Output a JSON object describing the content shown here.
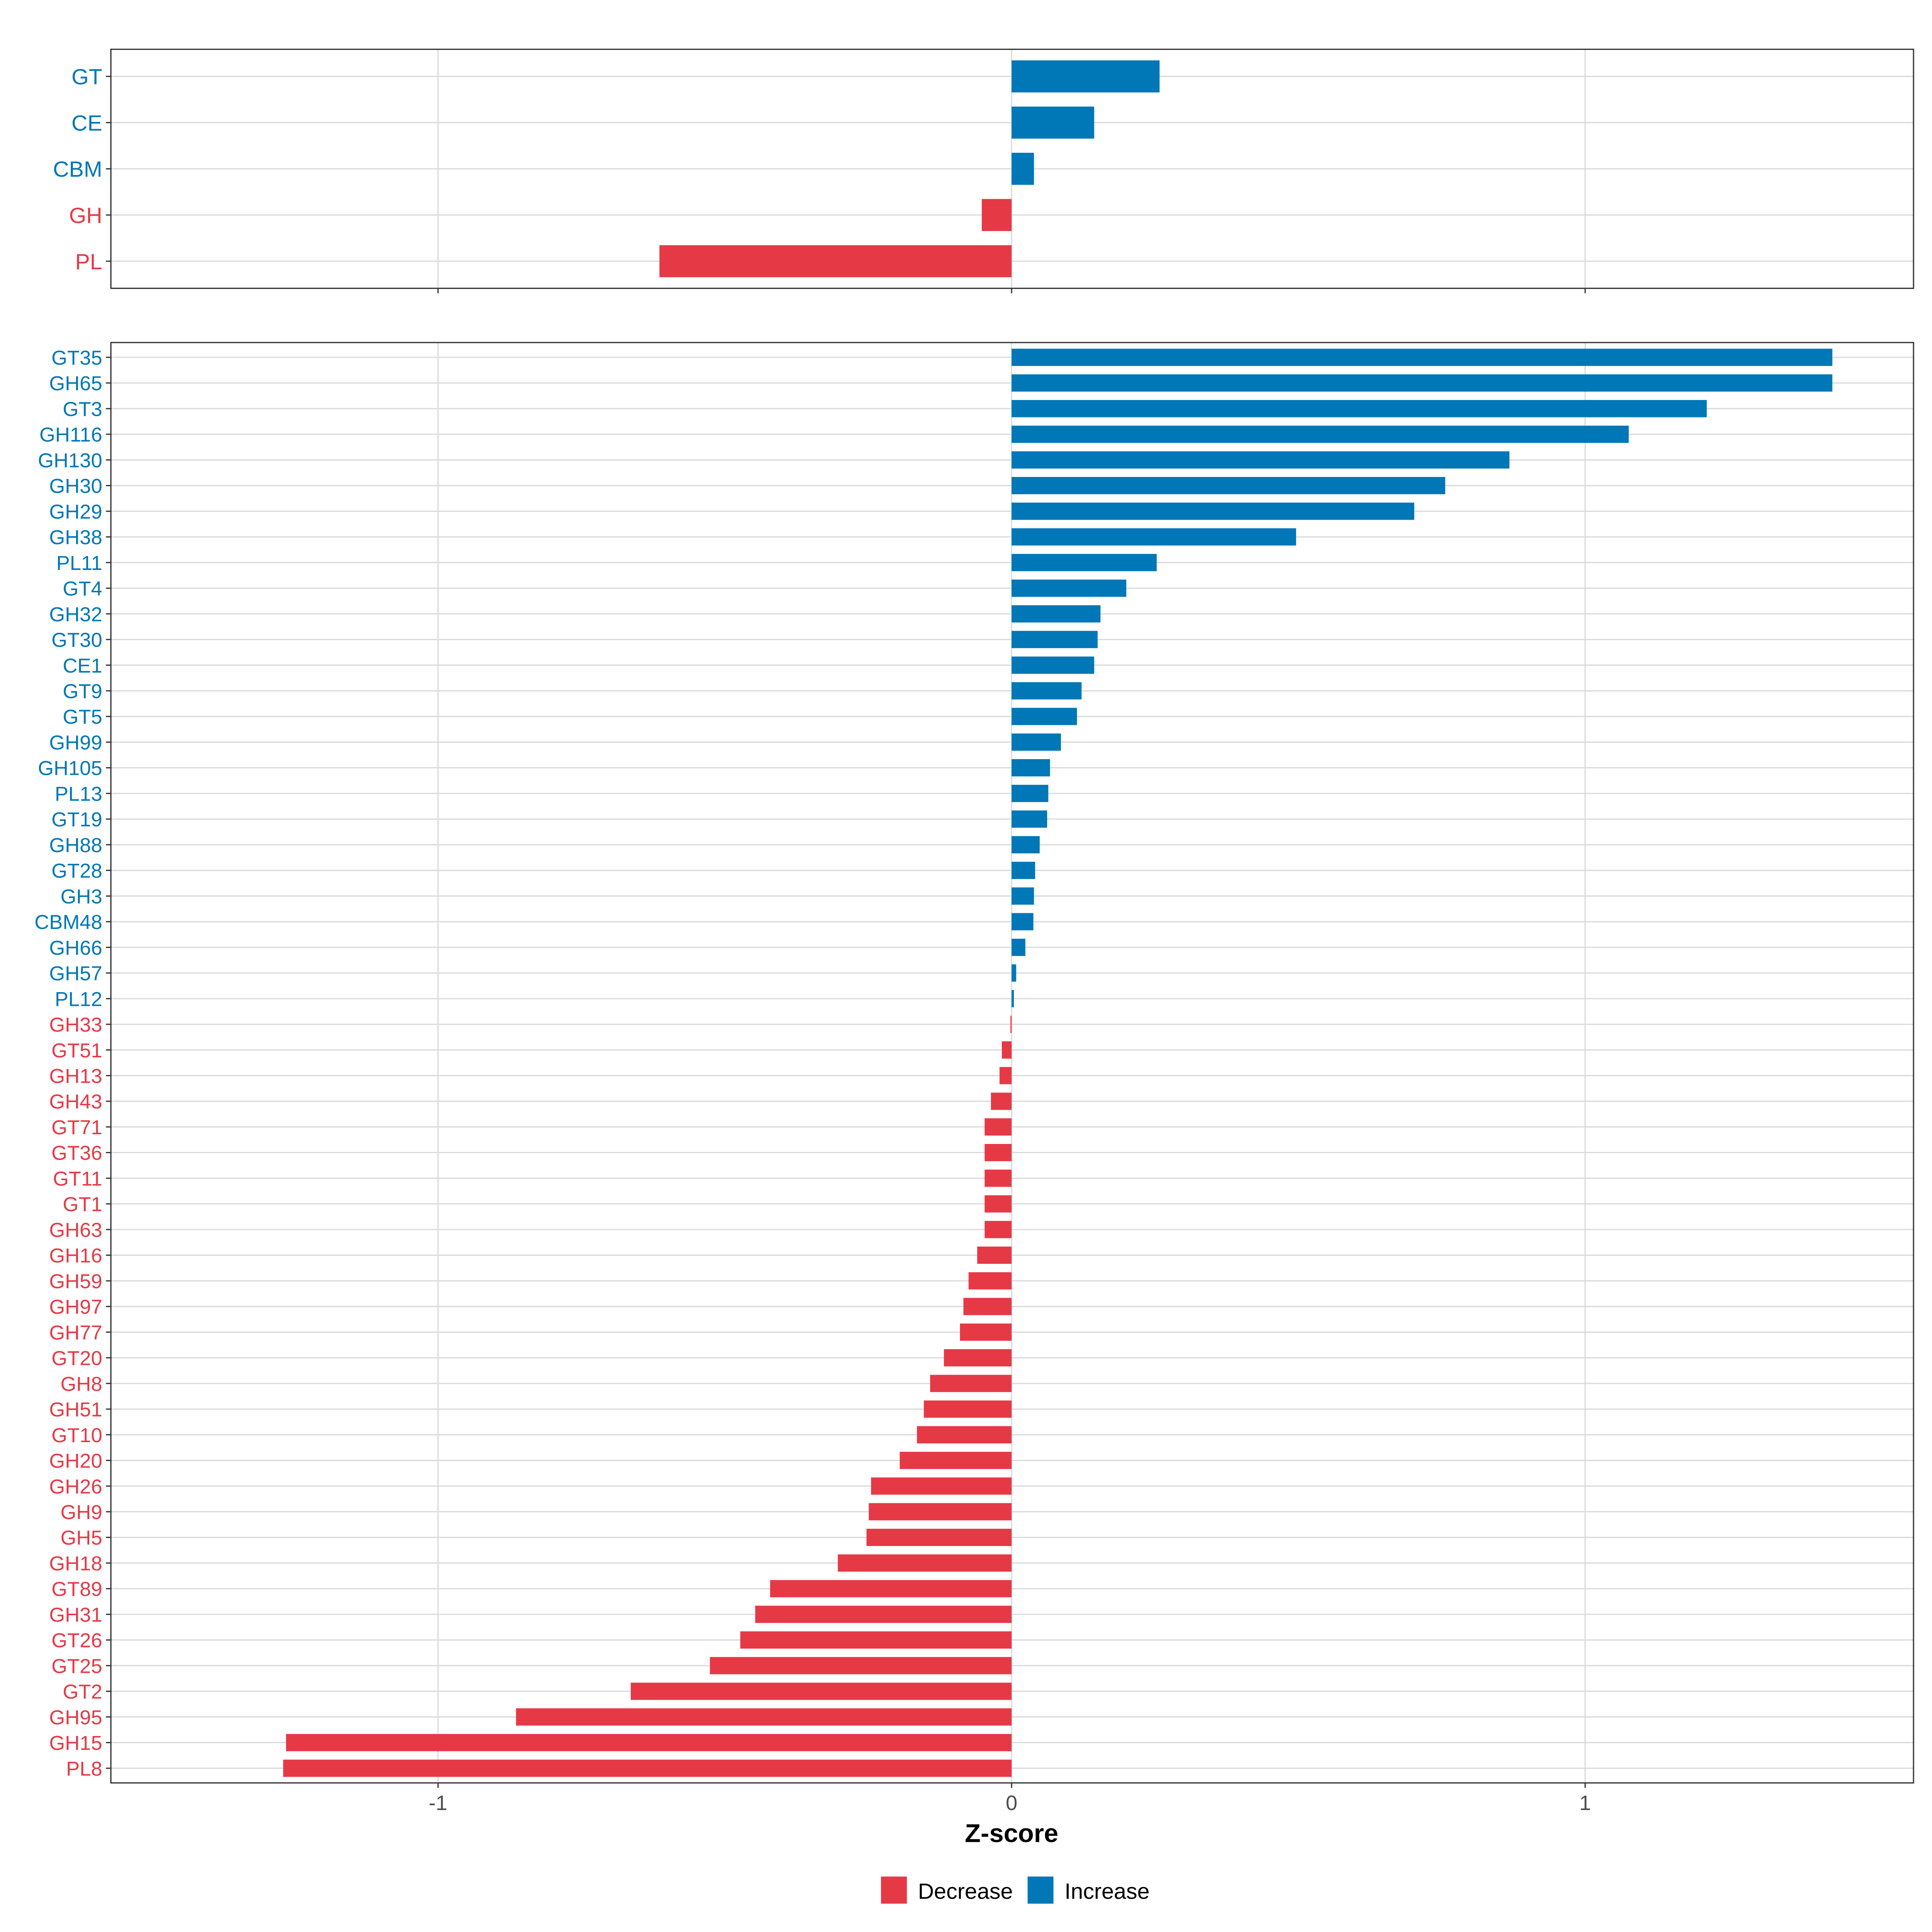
{
  "chart_data": [
    {
      "type": "bar",
      "orientation": "horizontal",
      "panel": "top",
      "categories": [
        "GT",
        "CE",
        "CBM",
        "GH",
        "PL"
      ],
      "values": [
        0.258,
        0.144,
        0.039,
        -0.052,
        -0.614
      ],
      "xlim": [
        -1.57,
        1.57
      ],
      "xticks": [
        -1,
        0,
        1
      ],
      "grid": true
    },
    {
      "type": "bar",
      "orientation": "horizontal",
      "panel": "bottom",
      "categories": [
        "GT35",
        "GH65",
        "GT3",
        "GH116",
        "GH130",
        "GH30",
        "GH29",
        "GH38",
        "PL11",
        "GT4",
        "GH32",
        "GT30",
        "CE1",
        "GT9",
        "GT5",
        "GH99",
        "GH105",
        "PL13",
        "GT19",
        "GH88",
        "GT28",
        "GH3",
        "CBM48",
        "GH66",
        "GH57",
        "PL12",
        "GH33",
        "GT51",
        "GH13",
        "GH43",
        "GT71",
        "GT36",
        "GT11",
        "GT1",
        "GH63",
        "GH16",
        "GH59",
        "GH97",
        "GH77",
        "GT20",
        "GH8",
        "GH51",
        "GT10",
        "GH20",
        "GH26",
        "GH9",
        "GH5",
        "GH18",
        "GT89",
        "GH31",
        "GT26",
        "GT25",
        "GT2",
        "GH95",
        "GH15",
        "PL8"
      ],
      "values": [
        1.431,
        1.431,
        1.212,
        1.076,
        0.868,
        0.756,
        0.702,
        0.496,
        0.253,
        0.2,
        0.155,
        0.15,
        0.144,
        0.122,
        0.114,
        0.086,
        0.067,
        0.064,
        0.062,
        0.049,
        0.041,
        0.039,
        0.038,
        0.024,
        0.008,
        0.004,
        -0.002,
        -0.017,
        -0.021,
        -0.036,
        -0.047,
        -0.047,
        -0.047,
        -0.047,
        -0.047,
        -0.06,
        -0.075,
        -0.084,
        -0.09,
        -0.118,
        -0.142,
        -0.153,
        -0.165,
        -0.195,
        -0.245,
        -0.249,
        -0.253,
        -0.303,
        -0.421,
        -0.447,
        -0.473,
        -0.526,
        -0.664,
        -0.864,
        -1.265,
        -1.27
      ],
      "xlim": [
        -1.57,
        1.57
      ],
      "xticks": [
        -1,
        0,
        1
      ],
      "xtick_labels": [
        "-1",
        "0",
        "1"
      ],
      "xlabel": "Z-score",
      "grid": true
    }
  ],
  "legend": {
    "placement": "bottom",
    "items": [
      {
        "label": "Decrease",
        "color": "#E63946"
      },
      {
        "label": "Increase",
        "color": "#0077B6"
      }
    ]
  },
  "colors": {
    "decrease": "#E63946",
    "increase": "#0077B6"
  }
}
